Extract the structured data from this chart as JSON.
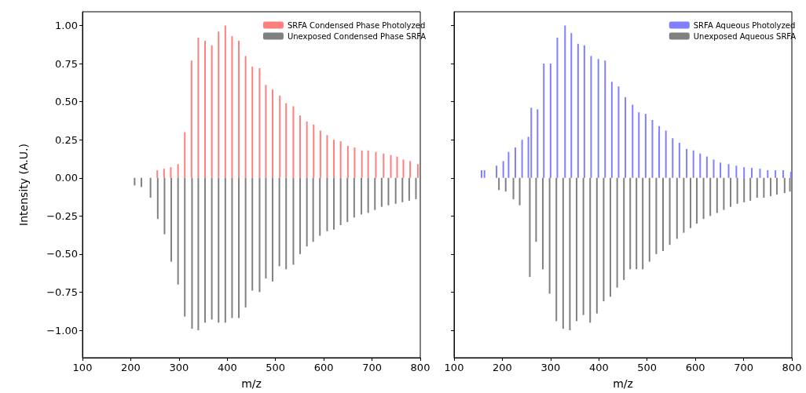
{
  "chart_data": [
    {
      "type": "bar",
      "xlabel": "m/z",
      "ylabel": "Intensity (A.U.)",
      "legend": "top right",
      "grid": false,
      "xlim": [
        100,
        800
      ],
      "xticks": [
        100,
        200,
        300,
        400,
        500,
        600,
        700,
        800
      ],
      "ylim": [
        -1.18,
        1.09
      ],
      "yticks": [
        {
          "value": -1,
          "label": "−1.00"
        },
        {
          "value": -0.75,
          "label": "−0.75"
        },
        {
          "value": -0.5,
          "label": "−0.50"
        },
        {
          "value": -0.25,
          "label": "−0.25"
        },
        {
          "value": 0,
          "label": "0.00"
        },
        {
          "value": 0.25,
          "label": "0.25"
        },
        {
          "value": 0.5,
          "label": "0.50"
        },
        {
          "value": 0.75,
          "label": "0.75"
        },
        {
          "value": 1,
          "label": "1.00"
        }
      ],
      "series": [
        {
          "name": "SRFA Condensed Phase Photolyzed",
          "color": "#ff7f7f",
          "x": [
            255,
            269,
            283,
            298,
            312,
            326,
            340,
            354,
            368,
            382,
            396,
            410,
            424,
            438,
            452,
            467,
            480,
            494,
            509,
            522,
            537,
            551,
            565,
            579,
            593,
            607,
            621,
            635,
            650,
            664,
            679,
            692,
            708,
            724,
            739,
            752,
            765,
            779,
            795
          ],
          "values": [
            0.05,
            0.06,
            0.07,
            0.09,
            0.3,
            0.77,
            0.92,
            0.9,
            0.87,
            0.96,
            1.0,
            0.93,
            0.9,
            0.8,
            0.73,
            0.72,
            0.61,
            0.58,
            0.54,
            0.49,
            0.47,
            0.41,
            0.37,
            0.35,
            0.31,
            0.28,
            0.25,
            0.24,
            0.21,
            0.2,
            0.18,
            0.18,
            0.17,
            0.16,
            0.15,
            0.14,
            0.12,
            0.11,
            0.09
          ]
        },
        {
          "name": "Unexposed Condensed Phase SRFA",
          "color": "#808080",
          "x": [
            208,
            222,
            241,
            256,
            270,
            284,
            298,
            312,
            327,
            340,
            354,
            368,
            382,
            396,
            410,
            424,
            438,
            452,
            467,
            480,
            494,
            508,
            522,
            537,
            551,
            565,
            578,
            592,
            607,
            621,
            635,
            649,
            663,
            678,
            692,
            706,
            720,
            734,
            749,
            763,
            777,
            791
          ],
          "values": [
            -0.05,
            -0.06,
            -0.13,
            -0.27,
            -0.37,
            -0.55,
            -0.7,
            -0.91,
            -0.99,
            -1.0,
            -0.95,
            -0.93,
            -0.95,
            -0.95,
            -0.92,
            -0.92,
            -0.85,
            -0.74,
            -0.75,
            -0.66,
            -0.68,
            -0.58,
            -0.6,
            -0.57,
            -0.5,
            -0.45,
            -0.42,
            -0.38,
            -0.35,
            -0.34,
            -0.31,
            -0.29,
            -0.26,
            -0.24,
            -0.23,
            -0.21,
            -0.19,
            -0.18,
            -0.17,
            -0.16,
            -0.15,
            -0.14
          ]
        }
      ]
    },
    {
      "type": "bar",
      "xlabel": "m/z",
      "legend": "top right",
      "grid": false,
      "tick_labels": "x",
      "xlim": [
        100,
        800
      ],
      "xticks": [
        100,
        200,
        300,
        400,
        500,
        600,
        700,
        800
      ],
      "ylim": [
        -1.18,
        1.09
      ],
      "yticks": [
        {
          "value": -1,
          "label": null
        },
        {
          "value": -0.75,
          "label": null
        },
        {
          "value": -0.5,
          "label": null
        },
        {
          "value": -0.25,
          "label": null
        },
        {
          "value": 0,
          "label": null
        },
        {
          "value": 0.25,
          "label": null
        },
        {
          "value": 0.5,
          "label": null
        },
        {
          "value": 0.75,
          "label": null
        },
        {
          "value": 1,
          "label": null
        }
      ],
      "series": [
        {
          "name": "SRFA Aqueous Photolyzed",
          "color": "#8080ff",
          "x": [
            157,
            163,
            188,
            202,
            213,
            227,
            241,
            254,
            260,
            273,
            286,
            300,
            314,
            330,
            343,
            357,
            370,
            384,
            399,
            413,
            427,
            441,
            455,
            470,
            483,
            497,
            511,
            525,
            539,
            553,
            567,
            582,
            596,
            610,
            624,
            638,
            652,
            669,
            685,
            701,
            717,
            734,
            750,
            766,
            782,
            798
          ],
          "values": [
            0.05,
            0.05,
            0.08,
            0.11,
            0.17,
            0.2,
            0.25,
            0.27,
            0.46,
            0.45,
            0.75,
            0.75,
            0.92,
            1.0,
            0.95,
            0.88,
            0.87,
            0.8,
            0.78,
            0.77,
            0.63,
            0.6,
            0.53,
            0.48,
            0.43,
            0.42,
            0.38,
            0.34,
            0.31,
            0.26,
            0.23,
            0.19,
            0.18,
            0.16,
            0.14,
            0.12,
            0.1,
            0.09,
            0.08,
            0.07,
            0.065,
            0.06,
            0.05,
            0.05,
            0.05,
            0.04
          ]
        },
        {
          "name": "Unexposed Aqueous SRFA",
          "color": "#808080",
          "x": [
            193,
            207,
            223,
            236,
            257,
            270,
            284,
            298,
            312,
            326,
            340,
            354,
            368,
            382,
            396,
            410,
            424,
            438,
            452,
            465,
            478,
            491,
            505,
            519,
            533,
            547,
            562,
            576,
            590,
            603,
            617,
            631,
            645,
            659,
            673,
            687,
            701,
            714,
            728,
            742,
            756,
            769,
            785,
            796
          ],
          "values": [
            -0.08,
            -0.09,
            -0.14,
            -0.18,
            -0.65,
            -0.42,
            -0.6,
            -0.76,
            -0.94,
            -0.99,
            -1.0,
            -0.94,
            -0.9,
            -0.95,
            -0.89,
            -0.81,
            -0.78,
            -0.72,
            -0.67,
            -0.6,
            -0.6,
            -0.6,
            -0.55,
            -0.5,
            -0.48,
            -0.44,
            -0.4,
            -0.36,
            -0.33,
            -0.3,
            -0.27,
            -0.25,
            -0.23,
            -0.21,
            -0.19,
            -0.17,
            -0.16,
            -0.15,
            -0.13,
            -0.13,
            -0.12,
            -0.11,
            -0.1,
            -0.09
          ]
        }
      ]
    }
  ]
}
